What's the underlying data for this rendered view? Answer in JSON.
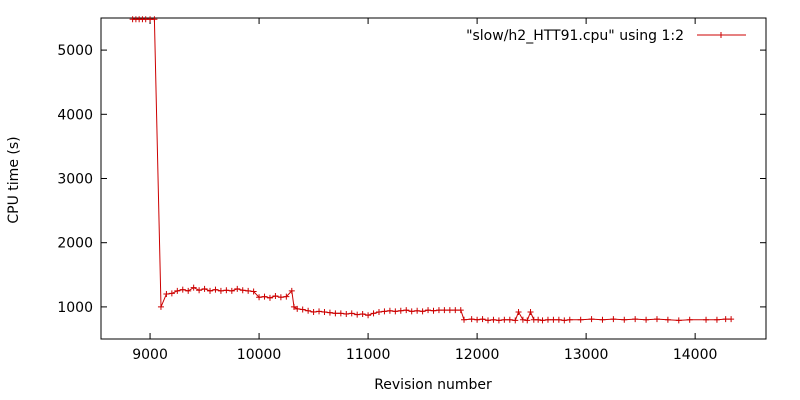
{
  "chart_data": {
    "type": "line",
    "xlabel": "Revision number",
    "ylabel": "CPU time (s)",
    "xlim": [
      8550,
      14650
    ],
    "ylim": [
      500,
      5500
    ],
    "xticks": [
      9000,
      10000,
      11000,
      12000,
      13000,
      14000
    ],
    "yticks": [
      1000,
      2000,
      3000,
      4000,
      5000
    ],
    "grid": false,
    "legend_position": "top-right",
    "series": [
      {
        "name": "\"slow/h2_HTT91.cpu\" using 1:2",
        "color": "#cc0000",
        "marker": "plus",
        "points": [
          [
            8840,
            5480
          ],
          [
            8870,
            5480
          ],
          [
            8900,
            5480
          ],
          [
            8930,
            5480
          ],
          [
            8960,
            5480
          ],
          [
            9000,
            5480
          ],
          [
            9040,
            5480
          ],
          [
            9100,
            1000
          ],
          [
            9150,
            1200
          ],
          [
            9200,
            1210
          ],
          [
            9250,
            1250
          ],
          [
            9300,
            1270
          ],
          [
            9350,
            1250
          ],
          [
            9400,
            1300
          ],
          [
            9450,
            1260
          ],
          [
            9500,
            1280
          ],
          [
            9550,
            1250
          ],
          [
            9600,
            1270
          ],
          [
            9650,
            1250
          ],
          [
            9700,
            1260
          ],
          [
            9750,
            1250
          ],
          [
            9800,
            1280
          ],
          [
            9850,
            1260
          ],
          [
            9900,
            1250
          ],
          [
            9950,
            1240
          ],
          [
            10000,
            1150
          ],
          [
            10050,
            1160
          ],
          [
            10100,
            1140
          ],
          [
            10150,
            1170
          ],
          [
            10200,
            1150
          ],
          [
            10250,
            1160
          ],
          [
            10300,
            1250
          ],
          [
            10320,
            1000
          ],
          [
            10350,
            970
          ],
          [
            10400,
            960
          ],
          [
            10450,
            940
          ],
          [
            10500,
            920
          ],
          [
            10550,
            930
          ],
          [
            10600,
            920
          ],
          [
            10650,
            910
          ],
          [
            10700,
            900
          ],
          [
            10750,
            900
          ],
          [
            10800,
            890
          ],
          [
            10850,
            900
          ],
          [
            10900,
            880
          ],
          [
            10950,
            890
          ],
          [
            11000,
            870
          ],
          [
            11050,
            900
          ],
          [
            11100,
            920
          ],
          [
            11150,
            930
          ],
          [
            11200,
            940
          ],
          [
            11250,
            930
          ],
          [
            11300,
            940
          ],
          [
            11350,
            950
          ],
          [
            11400,
            930
          ],
          [
            11450,
            940
          ],
          [
            11500,
            930
          ],
          [
            11550,
            950
          ],
          [
            11600,
            940
          ],
          [
            11650,
            950
          ],
          [
            11700,
            950
          ],
          [
            11750,
            950
          ],
          [
            11800,
            950
          ],
          [
            11850,
            950
          ],
          [
            11880,
            800
          ],
          [
            11950,
            810
          ],
          [
            12000,
            800
          ],
          [
            12050,
            810
          ],
          [
            12100,
            790
          ],
          [
            12150,
            800
          ],
          [
            12200,
            790
          ],
          [
            12250,
            800
          ],
          [
            12300,
            800
          ],
          [
            12350,
            790
          ],
          [
            12380,
            920
          ],
          [
            12420,
            800
          ],
          [
            12460,
            790
          ],
          [
            12490,
            920
          ],
          [
            12520,
            800
          ],
          [
            12560,
            800
          ],
          [
            12600,
            790
          ],
          [
            12650,
            800
          ],
          [
            12700,
            800
          ],
          [
            12750,
            800
          ],
          [
            12800,
            790
          ],
          [
            12850,
            800
          ],
          [
            12950,
            800
          ],
          [
            13050,
            810
          ],
          [
            13150,
            800
          ],
          [
            13250,
            810
          ],
          [
            13350,
            800
          ],
          [
            13450,
            810
          ],
          [
            13550,
            800
          ],
          [
            13650,
            810
          ],
          [
            13750,
            800
          ],
          [
            13850,
            790
          ],
          [
            13950,
            800
          ],
          [
            14100,
            800
          ],
          [
            14200,
            800
          ],
          [
            14280,
            810
          ],
          [
            14330,
            810
          ]
        ]
      }
    ]
  }
}
